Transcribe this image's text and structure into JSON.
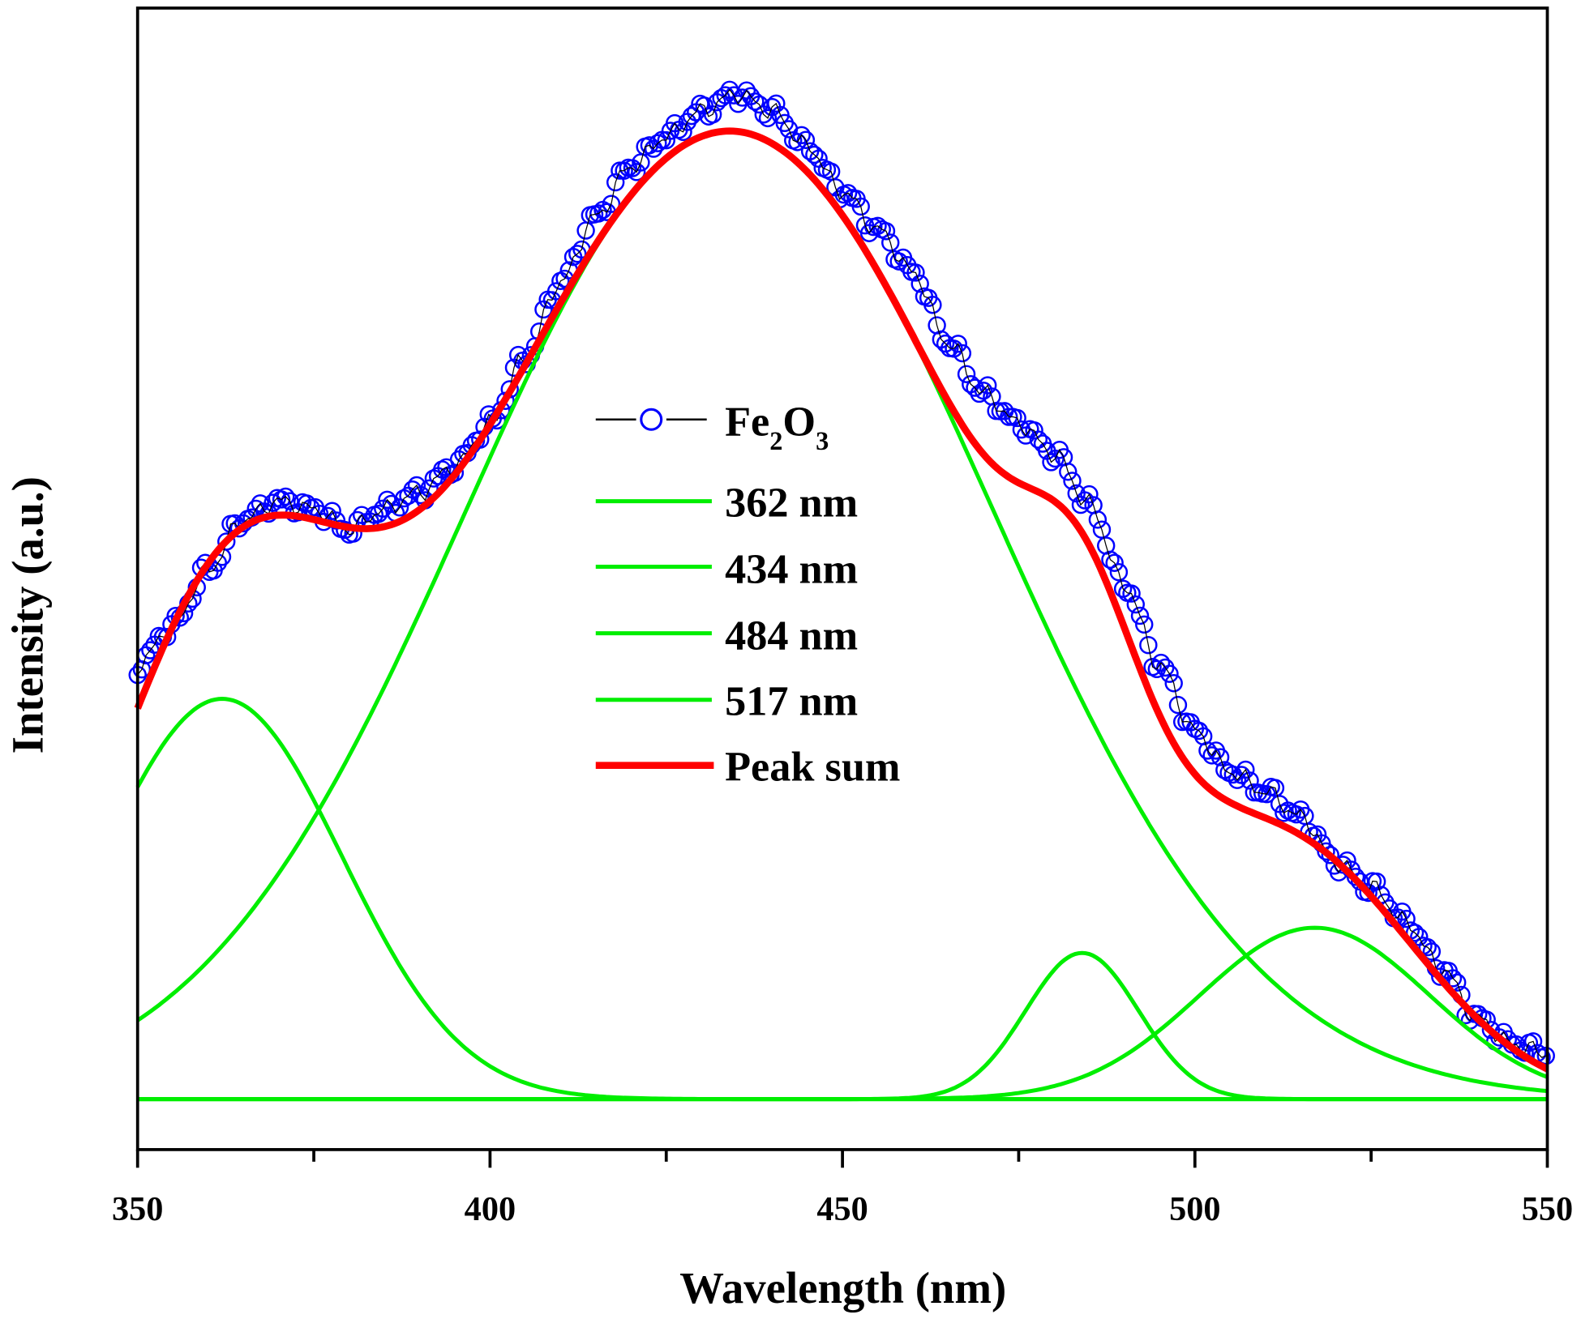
{
  "chart_data": {
    "type": "line",
    "title": "",
    "xlabel": "Wavelength (nm)",
    "ylabel": "Intensity (a.u.)",
    "xlim": [
      350,
      550
    ],
    "ylim": [
      -50,
      1082
    ],
    "x_ticks": [
      350,
      400,
      450,
      500,
      550
    ],
    "x_tick_labels": [
      "350",
      "400",
      "450",
      "500",
      "550"
    ],
    "x_minor_ticks": [
      375,
      425,
      475,
      525
    ],
    "grid": false,
    "legend_position": "center",
    "legend": {
      "fe2o3": {
        "main": "Fe",
        "sub1": "2",
        "mid": "O",
        "sub2": "3"
      },
      "p362": "362 nm",
      "p434": "434 nm",
      "p484": "484 nm",
      "p517": "517 nm",
      "sum": "Peak sum"
    },
    "colors": {
      "data": "#0000ff",
      "data_line": "#000000",
      "peaks": "#00ee00",
      "sum": "#ff0000"
    },
    "series": [
      {
        "name": "Fe2O3",
        "x": [
          350,
          355,
          360,
          365,
          370,
          375,
          380,
          385,
          390,
          395,
          400,
          405,
          410,
          415,
          420,
          425,
          430,
          435,
          440,
          445,
          450,
          455,
          460,
          465,
          470,
          475,
          480,
          485,
          490,
          495,
          500,
          505,
          510,
          515,
          520,
          525,
          530,
          535,
          540,
          545,
          550
        ],
        "values": [
          430,
          470,
          525,
          575,
          593,
          585,
          565,
          585,
          602,
          628,
          670,
          735,
          810,
          875,
          925,
          955,
          980,
          997,
          980,
          945,
          900,
          862,
          820,
          750,
          700,
          670,
          640,
          590,
          510,
          430,
          365,
          325,
          305,
          280,
          235,
          210,
          175,
          130,
          80,
          55,
          45
        ]
      }
    ],
    "peaks": [
      {
        "name": "362 nm",
        "center": 362,
        "amplitude": 397,
        "sigma": 17
      },
      {
        "name": "434 nm",
        "center": 434,
        "amplitude": 960,
        "sigma": 37.5
      },
      {
        "name": "484 nm",
        "center": 484,
        "amplitude": 145,
        "sigma": 8
      },
      {
        "name": "517 nm",
        "center": 517,
        "amplitude": 170,
        "sigma": 16.3
      }
    ]
  }
}
